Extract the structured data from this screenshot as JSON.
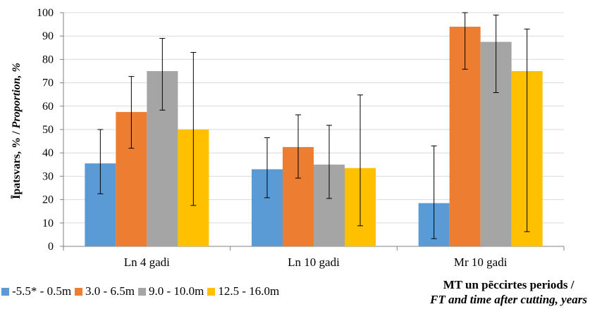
{
  "chart_data": {
    "type": "bar",
    "categories": [
      "Ln 4 gadi",
      "Ln 10 gadi",
      "Mr 10 gadi"
    ],
    "series": [
      {
        "name": "-5.5* - 0.5m",
        "color": "#5b9bd5",
        "values": [
          35.5,
          33.0,
          18.5
        ],
        "error_low": [
          22.5,
          20.8,
          3.3
        ],
        "error_high": [
          50.0,
          46.5,
          43.0
        ]
      },
      {
        "name": "3.0 - 6.5m",
        "color": "#ed7d31",
        "values": [
          57.5,
          42.5,
          94.0
        ],
        "error_low": [
          42.0,
          29.2,
          75.8
        ],
        "error_high": [
          72.7,
          56.3,
          100.0
        ]
      },
      {
        "name": "9.0 - 10.0m",
        "color": "#a5a5a5",
        "values": [
          75.0,
          35.0,
          87.5
        ],
        "error_low": [
          58.3,
          20.5,
          65.8
        ],
        "error_high": [
          89.0,
          51.8,
          99.0
        ]
      },
      {
        "name": "12.5 - 16.0m",
        "color": "#ffc000",
        "values": [
          50.0,
          33.5,
          75.0
        ],
        "error_low": [
          17.5,
          8.8,
          6.3
        ],
        "error_high": [
          83.0,
          64.8,
          93.0
        ]
      }
    ],
    "ylabel_lv": "Īpatsvars, % / ",
    "ylabel_en": "Proportion, %",
    "xlabel_lv": "MT un pēccirtes periods /",
    "xlabel_en": "FT and time after cutting, years",
    "ylim": [
      0,
      100
    ],
    "yticks": [
      0,
      10,
      20,
      30,
      40,
      50,
      60,
      70,
      80,
      90,
      100
    ],
    "grid": true,
    "legend_position": "bottom-left"
  }
}
